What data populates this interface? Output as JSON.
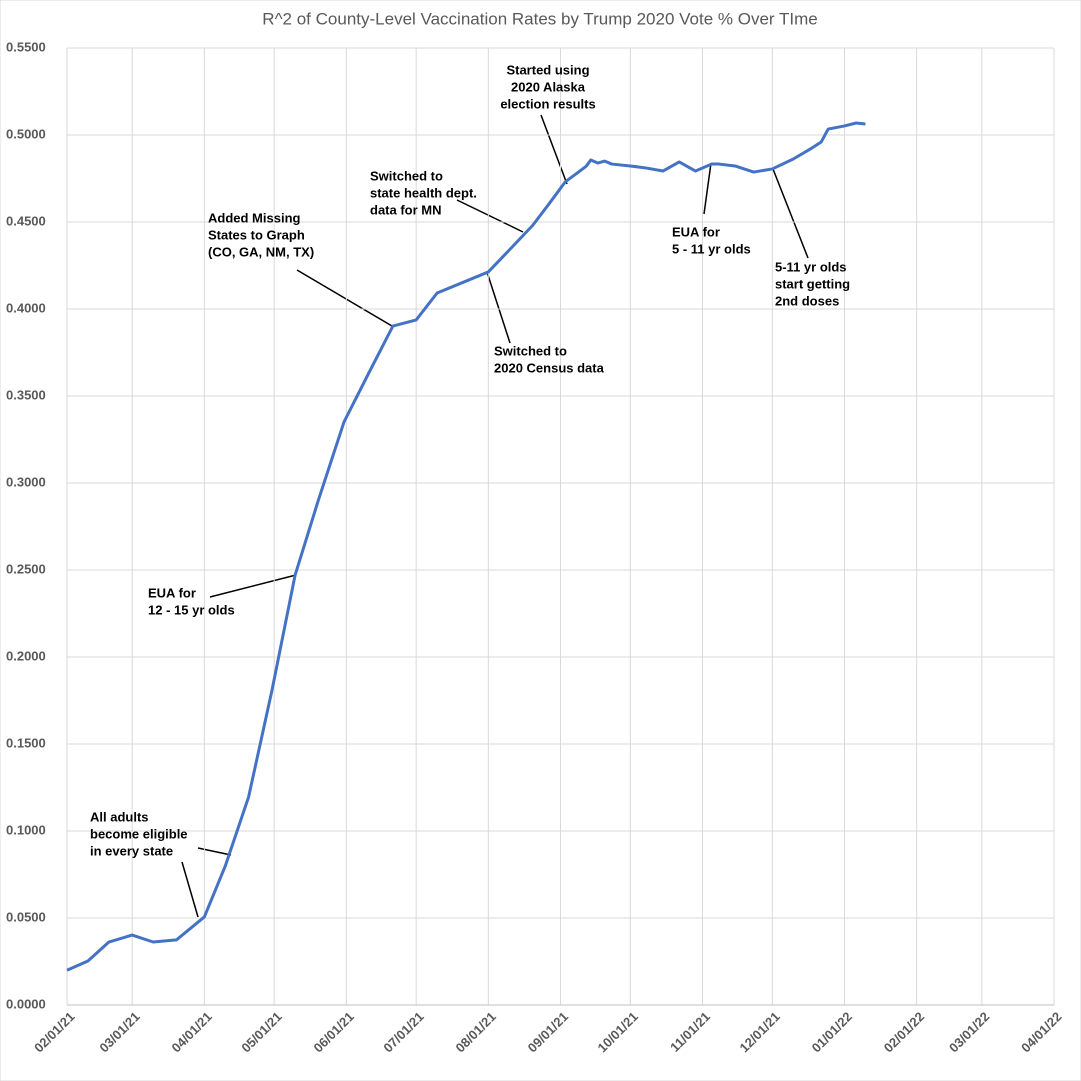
{
  "chart_data": {
    "type": "line",
    "title": "R^2 of County-Level Vaccination Rates by Trump 2020 Vote % Over TIme",
    "x": [
      "2021-02-01",
      "2021-02-10",
      "2021-02-19",
      "2021-03-01",
      "2021-03-10",
      "2021-03-20",
      "2021-04-01",
      "2021-04-10",
      "2021-04-20",
      "2021-04-30",
      "2021-05-10",
      "2021-05-20",
      "2021-05-31",
      "2021-06-10",
      "2021-06-21",
      "2021-07-01",
      "2021-07-10",
      "2021-08-01",
      "2021-08-10",
      "2021-08-20",
      "2021-08-27",
      "2021-09-03",
      "2021-09-08",
      "2021-09-12",
      "2021-09-14",
      "2021-09-17",
      "2021-09-20",
      "2021-09-23",
      "2021-10-01",
      "2021-10-08",
      "2021-10-15",
      "2021-10-22",
      "2021-10-29",
      "2021-11-05",
      "2021-11-08",
      "2021-11-15",
      "2021-11-23",
      "2021-12-01",
      "2021-12-10",
      "2021-12-18",
      "2021-12-22",
      "2021-12-25",
      "2022-01-01",
      "2022-01-06",
      "2022-01-10"
    ],
    "series": [
      {
        "name": "R^2",
        "color": "#4472c4",
        "values": [
          0.02,
          0.0253,
          0.0362,
          0.0402,
          0.0362,
          0.0374,
          0.0506,
          0.0799,
          0.1195,
          0.1805,
          0.2471,
          0.2902,
          0.3351,
          0.3615,
          0.3902,
          0.3937,
          0.4092,
          0.4213,
          0.4339,
          0.448,
          0.4603,
          0.473,
          0.478,
          0.482,
          0.4856,
          0.4839,
          0.485,
          0.4833,
          0.4822,
          0.481,
          0.4793,
          0.4845,
          0.4793,
          0.4833,
          0.4833,
          0.4822,
          0.4787,
          0.4805,
          0.4862,
          0.4925,
          0.496,
          0.5034,
          0.5052,
          0.5069,
          0.5063
        ]
      }
    ],
    "xlim": [
      "2021-02-01",
      "2022-04-01"
    ],
    "xticks": [
      {
        "value": "2021-02-01",
        "label": "02/01/21"
      },
      {
        "value": "2021-03-01",
        "label": "03/01/21"
      },
      {
        "value": "2021-04-01",
        "label": "04/01/21"
      },
      {
        "value": "2021-05-01",
        "label": "05/01/21"
      },
      {
        "value": "2021-06-01",
        "label": "06/01/21"
      },
      {
        "value": "2021-07-01",
        "label": "07/01/21"
      },
      {
        "value": "2021-08-01",
        "label": "08/01/21"
      },
      {
        "value": "2021-09-01",
        "label": "09/01/21"
      },
      {
        "value": "2021-10-01",
        "label": "10/01/21"
      },
      {
        "value": "2021-11-01",
        "label": "11/01/21"
      },
      {
        "value": "2021-12-01",
        "label": "12/01/21"
      },
      {
        "value": "2022-01-01",
        "label": "01/01/22"
      },
      {
        "value": "2022-02-01",
        "label": "02/01/22"
      },
      {
        "value": "2022-03-01",
        "label": "03/01/22"
      },
      {
        "value": "2022-04-01",
        "label": "04/01/22"
      }
    ],
    "ylim": [
      0,
      0.55
    ],
    "yticks": [
      {
        "value": 0,
        "label": "0.0000"
      },
      {
        "value": 0.05,
        "label": "0.0500"
      },
      {
        "value": 0.1,
        "label": "0.1000"
      },
      {
        "value": 0.15,
        "label": "0.1500"
      },
      {
        "value": 0.2,
        "label": "0.2000"
      },
      {
        "value": 0.25,
        "label": "0.2500"
      },
      {
        "value": 0.3,
        "label": "0.3000"
      },
      {
        "value": 0.35,
        "label": "0.3500"
      },
      {
        "value": 0.4,
        "label": "0.4000"
      },
      {
        "value": 0.45,
        "label": "0.4500"
      },
      {
        "value": 0.5,
        "label": "0.5000"
      },
      {
        "value": 0.55,
        "label": "0.5500"
      }
    ],
    "grid": true,
    "annotations": [
      [
        "All adults",
        "become eligible",
        "in every state"
      ],
      [
        "EUA for",
        "12 - 15 yr olds"
      ],
      [
        "Added Missing",
        "States to Graph",
        "(CO, GA, NM, TX)"
      ],
      [
        "Switched to",
        "2020 Census data"
      ],
      [
        "Switched to",
        "state health dept.",
        "data for MN"
      ],
      [
        "Started using",
        "2020 Alaska",
        "election results"
      ],
      [
        "EUA for",
        "5 - 11 yr olds"
      ],
      [
        "5-11 yr olds",
        "start getting",
        "2nd doses"
      ]
    ]
  }
}
